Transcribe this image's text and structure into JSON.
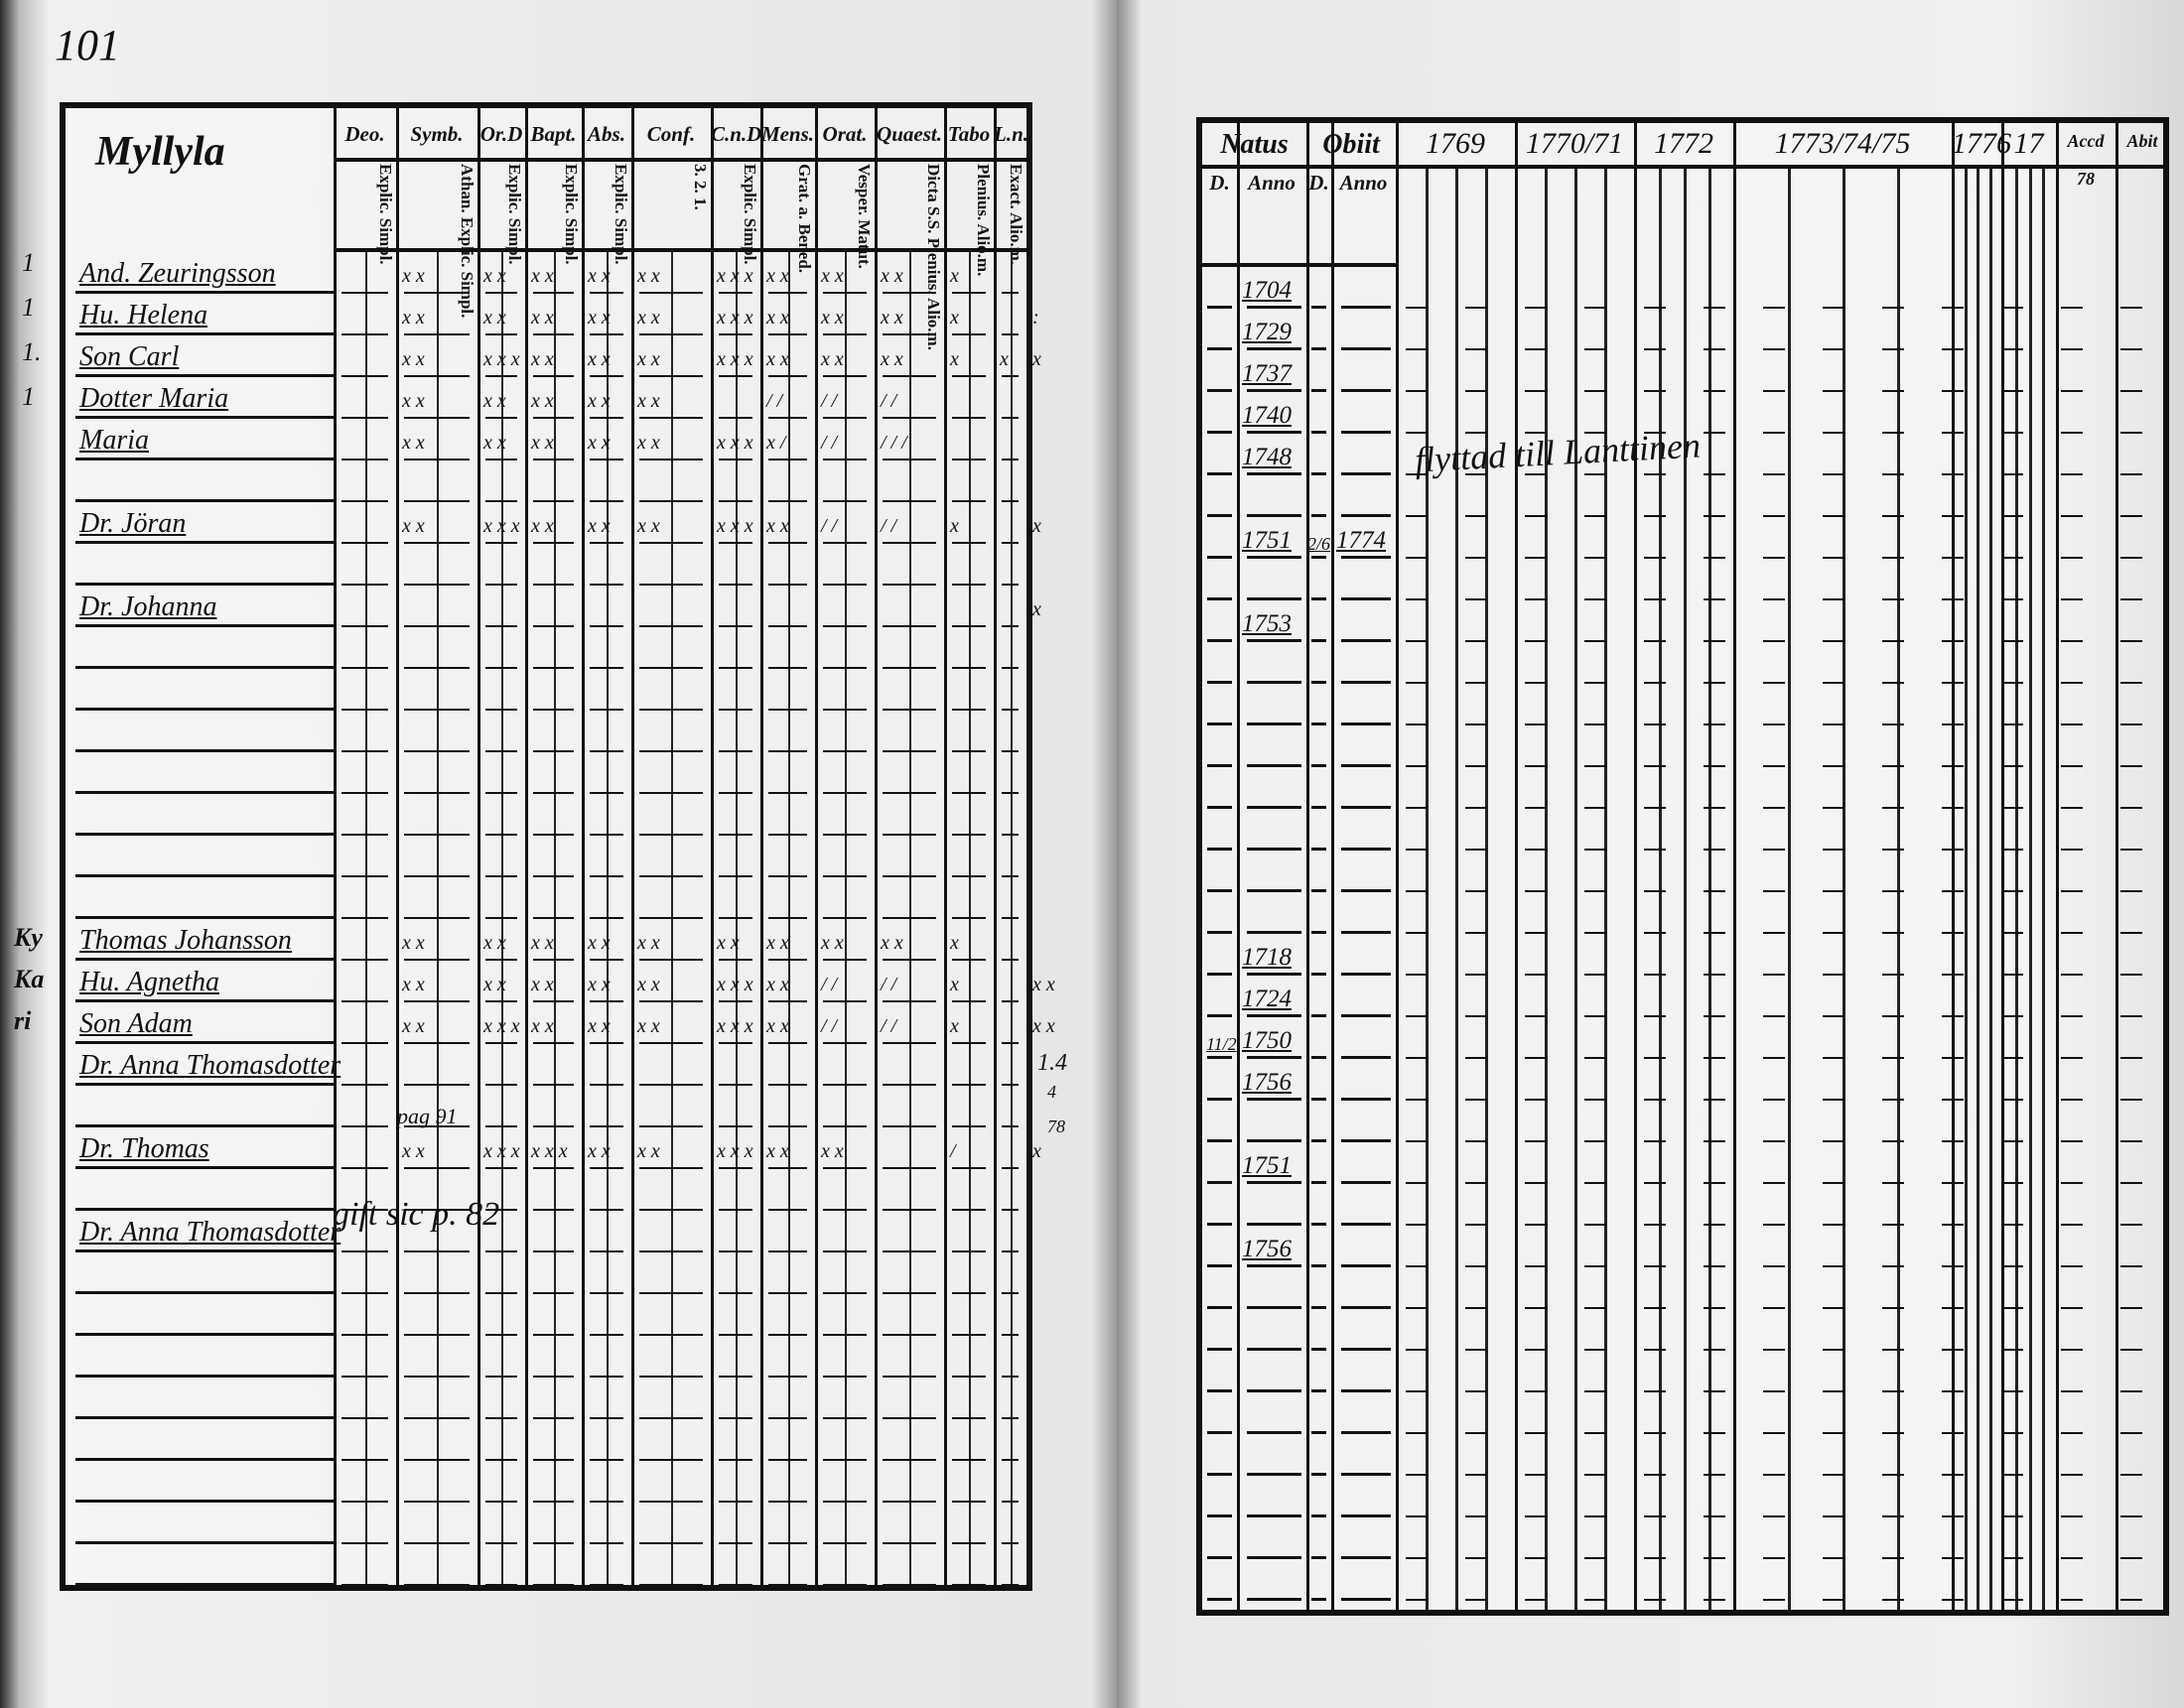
{
  "left_page": {
    "page_number": "101",
    "village": "Myllyla",
    "columns": [
      {
        "head": "Deo.",
        "sub": "Explic. Simpl."
      },
      {
        "head": "Symb.",
        "sub": "Athan. Explic. Simpl."
      },
      {
        "head": "Or.D",
        "sub": "Explic. Simpl."
      },
      {
        "head": "Bapt.",
        "sub": "Explic. Simpl."
      },
      {
        "head": "Abs.",
        "sub": "Explic. Simpl."
      },
      {
        "head": "Conf.",
        "sub": "3. 2. 1."
      },
      {
        "head": "C.n.D",
        "sub": "Explic. Simpl."
      },
      {
        "head": "Mens.",
        "sub": "Grat. a. Bened."
      },
      {
        "head": "Orat.",
        "sub": "Vesper. Matut."
      },
      {
        "head": "Quaest.",
        "sub": "Dicta S.S. Plenius. Alio.m."
      },
      {
        "head": "Tabo",
        "sub": "Plenius. Alio.m."
      },
      {
        "head": "L.n.",
        "sub": "Exact. Alio.m."
      }
    ],
    "rows": [
      {
        "name": "And. Zeuringsson",
        "marks": [
          "x x",
          "x x",
          "x x",
          "x x",
          "x x",
          "x x x",
          "x x",
          "x x",
          "x x",
          "x",
          "",
          ""
        ]
      },
      {
        "name": "Hu. Helena",
        "marks": [
          "x x",
          "x x",
          "x x",
          "x x",
          "x x",
          "x x x",
          "x x",
          "x x",
          "x x",
          "x",
          "",
          ":"
        ]
      },
      {
        "name": "Son Carl",
        "marks": [
          "x x",
          "x x x",
          "x x",
          "x x",
          "x x",
          "x x x",
          "x x",
          "x x",
          "x x",
          "x",
          "x",
          "x"
        ]
      },
      {
        "name": "Dotter Maria",
        "marks": [
          "x x",
          "x x",
          "x x",
          "x x",
          "x x",
          "",
          "/ /",
          "/ /",
          "/ /",
          "",
          "",
          ""
        ]
      },
      {
        "name": "Maria",
        "marks": [
          "x x",
          "x x",
          "x x",
          "x x",
          "x x",
          "x x x",
          "x /",
          "/ /",
          "/ / /",
          "",
          "",
          ""
        ]
      },
      {
        "name": "",
        "marks": []
      },
      {
        "name": "Dr. Jöran",
        "marks": [
          "x x",
          "x x x",
          "x x",
          "x x",
          "x x",
          "x x x",
          "x x",
          "/ /",
          "/ /",
          "x",
          "",
          "x"
        ]
      },
      {
        "name": "",
        "marks": []
      },
      {
        "name": "Dr. Johanna",
        "marks": [
          "",
          "",
          "",
          "",
          "",
          "",
          "",
          "",
          "",
          "",
          "",
          "x"
        ]
      },
      {
        "name": "",
        "marks": []
      },
      {
        "name": "",
        "marks": []
      },
      {
        "name": "",
        "marks": []
      },
      {
        "name": "",
        "marks": []
      },
      {
        "name": "",
        "marks": []
      },
      {
        "name": "",
        "marks": []
      },
      {
        "name": "",
        "marks": []
      },
      {
        "name": "Thomas Johansson",
        "marks": [
          "x x",
          "x x",
          "x x",
          "x x",
          "x x",
          "x x",
          "x x",
          "x x",
          "x x",
          "x",
          "",
          ""
        ]
      },
      {
        "name": "Hu. Agnetha",
        "marks": [
          "x x",
          "x x",
          "x x",
          "x x",
          "x x",
          "x x x",
          "x x",
          "/ /",
          "/ /",
          "x",
          "",
          "x x"
        ]
      },
      {
        "name": "Son Adam",
        "marks": [
          "x x",
          "x x x",
          "x x",
          "x x",
          "x x",
          "x x x",
          "x x",
          "/ /",
          "/ /",
          "x",
          "",
          "x x"
        ]
      },
      {
        "name": "Dr. Anna Thomasdotter",
        "marks": []
      },
      {
        "name": "",
        "marks": []
      },
      {
        "name": "Dr. Thomas",
        "marks": [
          "x x",
          "x x x",
          "x x x",
          "x x",
          "x x",
          "x x x",
          "x x",
          "x x",
          "",
          "/",
          "",
          "x"
        ]
      },
      {
        "name": "",
        "marks": []
      },
      {
        "name": "Dr. Anna Thomasdotter",
        "marks": []
      },
      {
        "name": "",
        "marks": []
      },
      {
        "name": "",
        "marks": []
      },
      {
        "name": "",
        "marks": []
      },
      {
        "name": "",
        "marks": []
      },
      {
        "name": "",
        "marks": []
      },
      {
        "name": "",
        "marks": []
      },
      {
        "name": "",
        "marks": []
      },
      {
        "name": "",
        "marks": []
      }
    ],
    "margin_marks": [
      "1",
      "1",
      "1.",
      "1"
    ],
    "margin_village": [
      "Ky",
      "Ka",
      "ri"
    ],
    "note_moved": "gift sic p. 82",
    "note_pag": "pag 91",
    "note_side": [
      "1.4",
      "4",
      "78"
    ]
  },
  "right_page": {
    "headers": {
      "natus": "Natus",
      "obit": "Obiit",
      "d": "D.",
      "anno": "Anno",
      "years": [
        "1769",
        "1770/71",
        "1772",
        "1773/74/75",
        "1776",
        "17"
      ],
      "accessit": "Accd",
      "abiit": "Abit",
      "accessit_note": "78"
    },
    "rows": [
      {
        "natus_year": "1704",
        "natus_day": "",
        "obit_day": "",
        "obit_year": ""
      },
      {
        "natus_year": "1729",
        "natus_day": "",
        "obit_day": "",
        "obit_year": ""
      },
      {
        "natus_year": "1737",
        "natus_day": "",
        "obit_day": "",
        "obit_year": ""
      },
      {
        "natus_year": "1740",
        "natus_day": "",
        "obit_day": "",
        "obit_year": ""
      },
      {
        "natus_year": "1748",
        "natus_day": "",
        "obit_day": "",
        "obit_year": ""
      },
      {
        "natus_year": "",
        "natus_day": "",
        "obit_day": "",
        "obit_year": ""
      },
      {
        "natus_year": "1751",
        "natus_day": "",
        "obit_day": "2/6",
        "obit_year": "1774"
      },
      {
        "natus_year": "",
        "natus_day": "",
        "obit_day": "",
        "obit_year": ""
      },
      {
        "natus_year": "1753",
        "natus_day": "",
        "obit_day": "",
        "obit_year": ""
      },
      {
        "natus_year": ""
      },
      {
        "natus_year": ""
      },
      {
        "natus_year": ""
      },
      {
        "natus_year": ""
      },
      {
        "natus_year": ""
      },
      {
        "natus_year": ""
      },
      {
        "natus_year": ""
      },
      {
        "natus_year": "1718",
        "natus_day": "",
        "obit_day": "",
        "obit_year": ""
      },
      {
        "natus_year": "1724",
        "natus_day": "",
        "obit_day": "",
        "obit_year": ""
      },
      {
        "natus_year": "1750",
        "natus_day": "11/2",
        "obit_day": "",
        "obit_year": ""
      },
      {
        "natus_year": "1756",
        "natus_day": "",
        "obit_day": "",
        "obit_year": ""
      },
      {
        "natus_year": ""
      },
      {
        "natus_year": "1751",
        "natus_day": "",
        "obit_day": "",
        "obit_year": ""
      },
      {
        "natus_year": ""
      },
      {
        "natus_year": "1756",
        "natus_day": "",
        "obit_day": "",
        "obit_year": ""
      },
      {
        "natus_year": ""
      },
      {
        "natus_year": ""
      },
      {
        "natus_year": ""
      },
      {
        "natus_year": ""
      },
      {
        "natus_year": ""
      },
      {
        "natus_year": ""
      },
      {
        "natus_year": ""
      },
      {
        "natus_year": ""
      }
    ],
    "note_moved": "flyttad till Lanttinen"
  }
}
